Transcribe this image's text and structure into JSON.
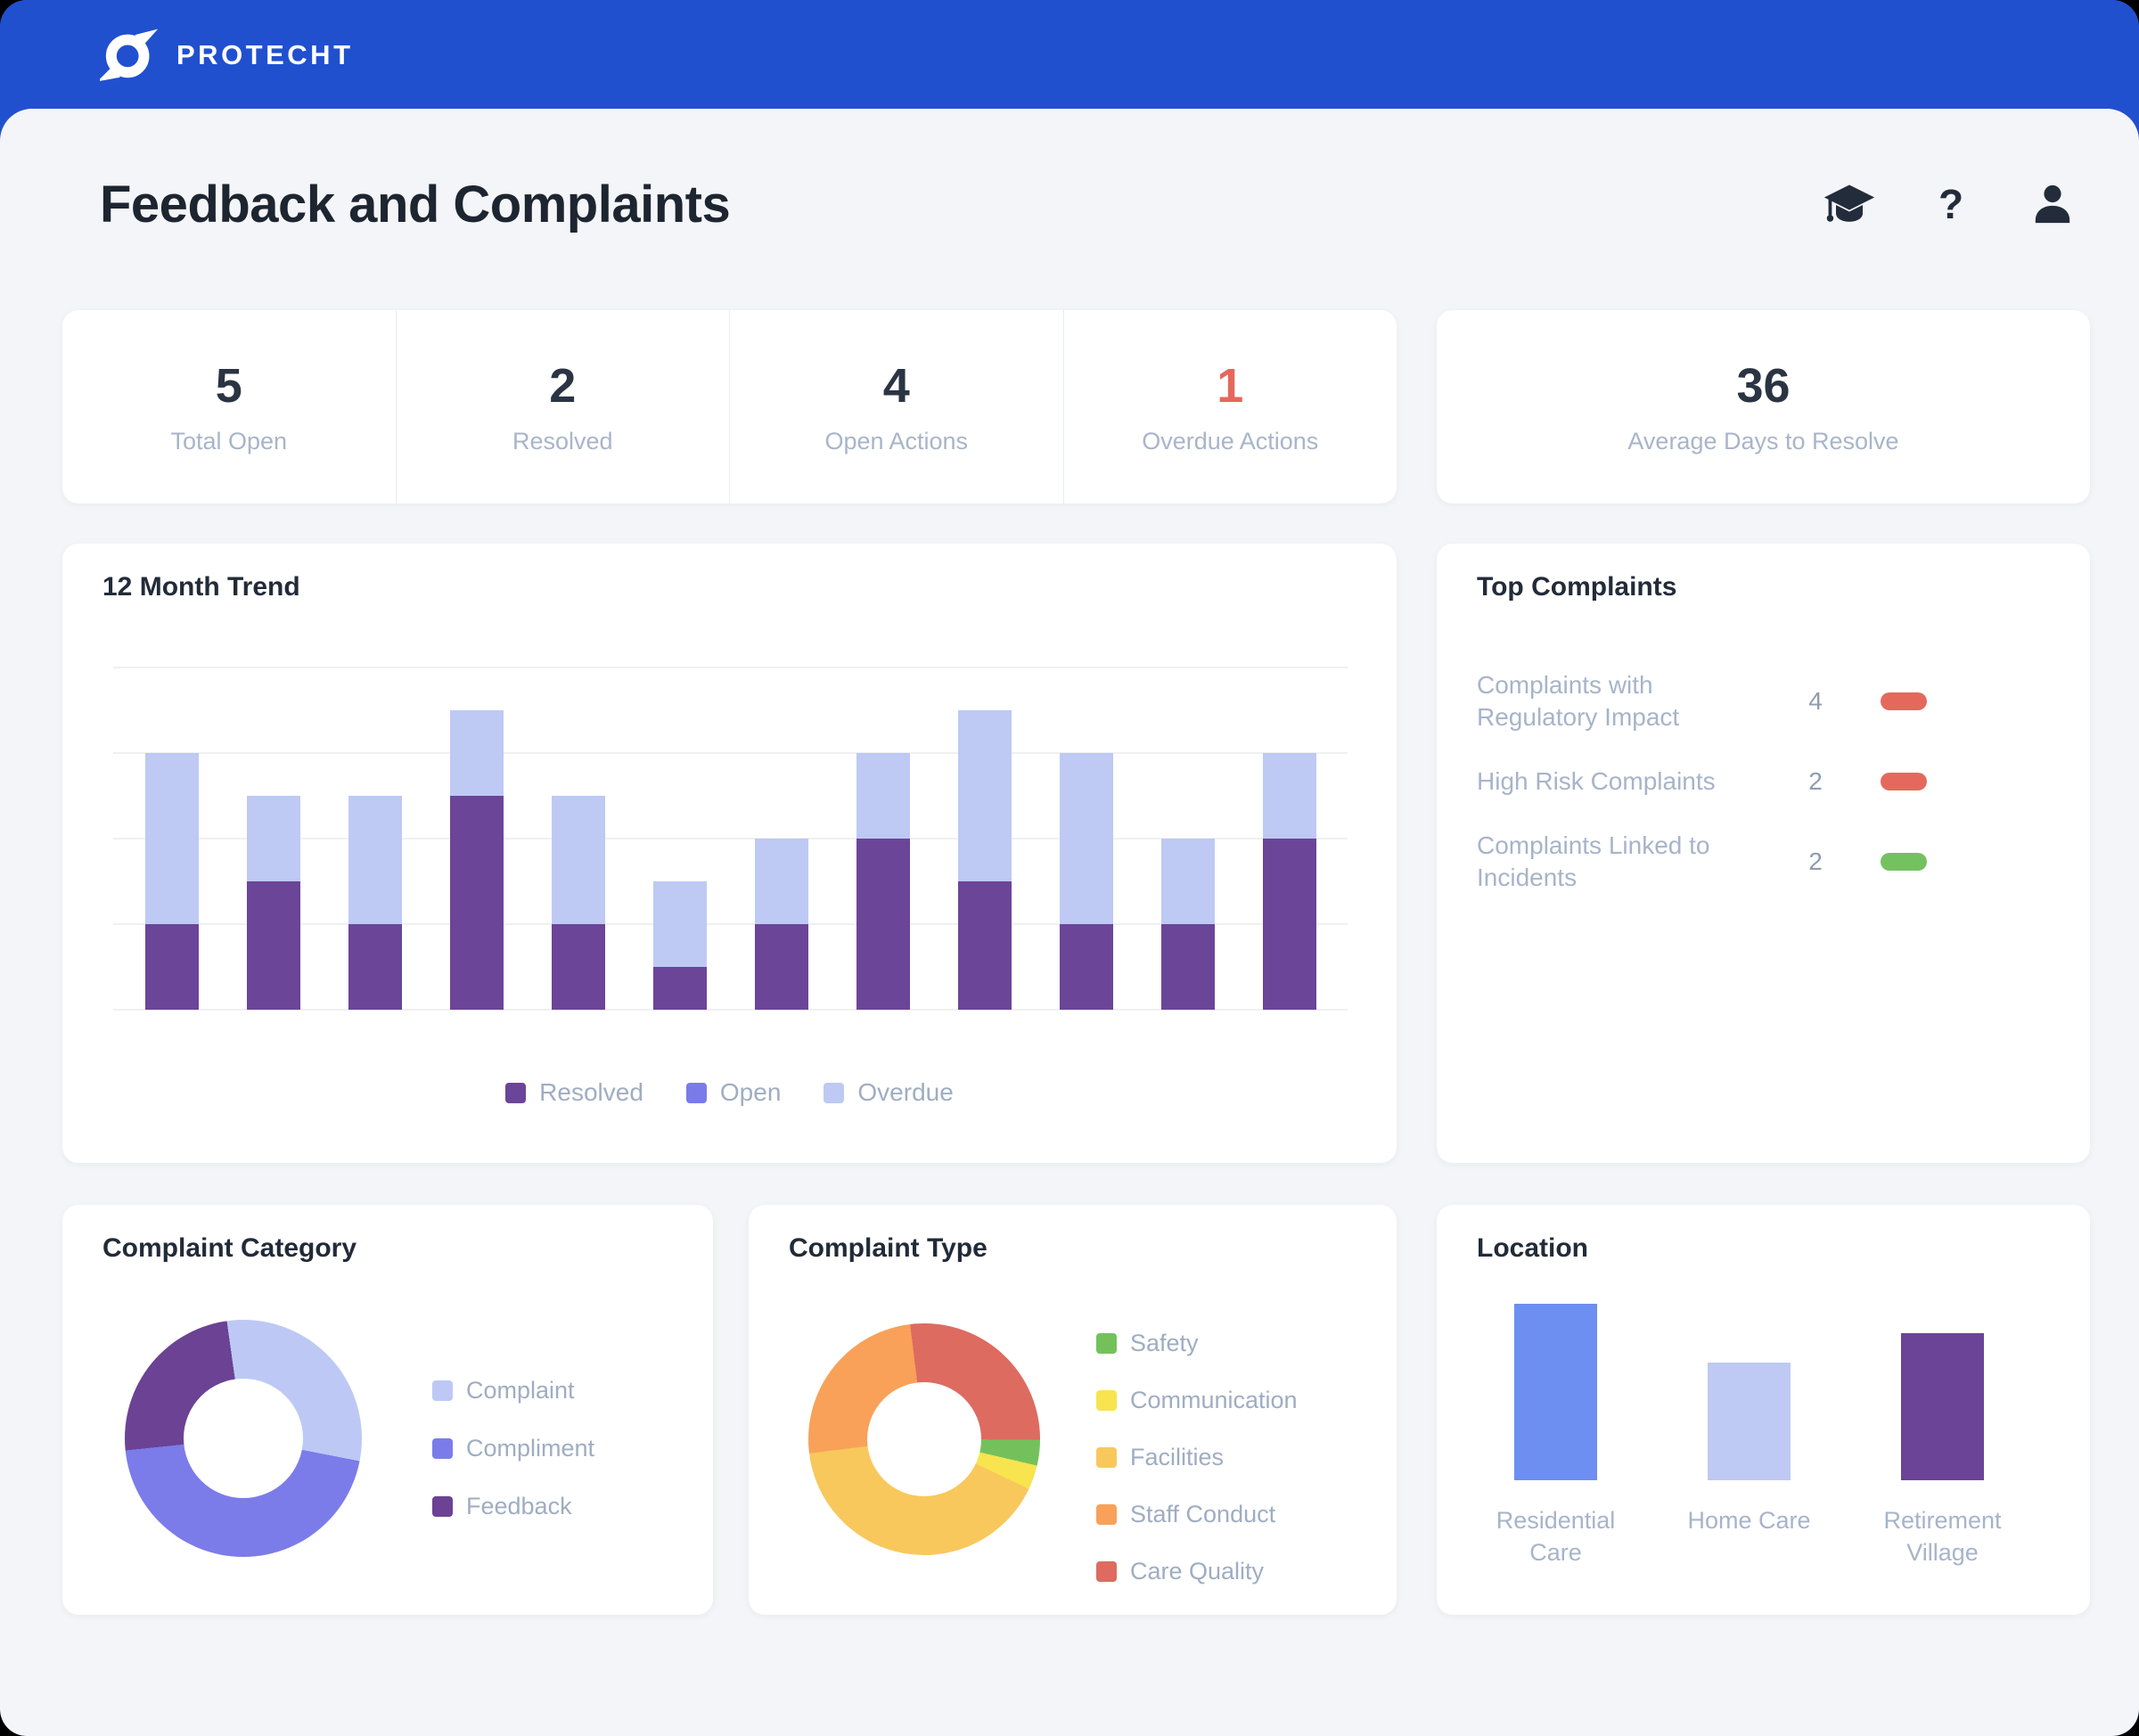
{
  "brand": {
    "name": "PROTECHT",
    "bar_color": "#2150cf"
  },
  "page": {
    "title": "Feedback and Complaints"
  },
  "header_icons": [
    {
      "name": "graduation-cap-icon"
    },
    {
      "name": "help-icon",
      "glyph": "?"
    },
    {
      "name": "user-icon"
    }
  ],
  "stats": {
    "left_items": [
      {
        "value": "5",
        "label": "Total Open",
        "alert": false
      },
      {
        "value": "2",
        "label": "Resolved",
        "alert": false
      },
      {
        "value": "4",
        "label": "Open Actions",
        "alert": false
      },
      {
        "value": "1",
        "label": "Overdue Actions",
        "alert": true
      }
    ],
    "right_items": [
      {
        "value": "36",
        "label": "Average Days to Resolve",
        "alert": false
      }
    ],
    "alert_color": "#e4695c"
  },
  "top_complaints": {
    "title": "Top Complaints",
    "rows": [
      {
        "label": "Complaints with Regulatory Impact",
        "value": "4",
        "pill_color": "#e4695c"
      },
      {
        "label": "High Risk Complaints",
        "value": "2",
        "pill_color": "#e4695c"
      },
      {
        "label": "Complaints Linked to Incidents",
        "value": "2",
        "pill_color": "#74c160"
      }
    ]
  },
  "chart_data": [
    {
      "id": "trend",
      "type": "bar",
      "stacked": true,
      "title": "12 Month Trend",
      "categories_shown": false,
      "months": 12,
      "series": [
        {
          "name": "Resolved",
          "color": "#6b4598",
          "values": [
            2,
            3,
            2,
            5,
            2,
            1,
            2,
            4,
            3,
            2,
            2,
            4
          ]
        },
        {
          "name": "Open",
          "color": "#7b7ae9",
          "values": [
            0,
            0,
            0,
            0,
            0,
            0,
            0,
            0,
            0,
            0,
            0,
            0
          ]
        },
        {
          "name": "Overdue",
          "color": "#bec9f4",
          "values": [
            4,
            2,
            3,
            2,
            3,
            2,
            2,
            2,
            4,
            4,
            2,
            2
          ]
        }
      ],
      "ylim": [
        0,
        8
      ],
      "grid_step": 2,
      "grid": true,
      "legend_position": "bottom"
    },
    {
      "id": "category",
      "type": "pie",
      "title": "Complaint Category",
      "start_angle_deg": -8,
      "slices": [
        {
          "label": "Complaint",
          "color": "#bdc9f4",
          "pct": 30.3
        },
        {
          "label": "Compliment",
          "color": "#7b7ce9",
          "pct": 45.3
        },
        {
          "label": "Feedback",
          "color": "#6b4294",
          "pct": 24.4
        }
      ],
      "donut_hole_ratio": 0.5,
      "legend_position": "right"
    },
    {
      "id": "type",
      "type": "pie",
      "title": "Complaint Type",
      "start_angle_deg": -7,
      "slices": [
        {
          "label": "Care Quality",
          "color": "#dd6b60",
          "pct": 27.0
        },
        {
          "label": "Safety",
          "color": "#74c15c",
          "pct": 3.6
        },
        {
          "label": "Communication",
          "color": "#f7e44e",
          "pct": 3.4
        },
        {
          "label": "Facilities",
          "color": "#f8c85c",
          "pct": 41.0
        },
        {
          "label": "Staff Conduct",
          "color": "#f9a158",
          "pct": 25.0
        }
      ],
      "legend_order": [
        "Safety",
        "Communication",
        "Facilities",
        "Staff Conduct",
        "Care Quality"
      ],
      "donut_hole_ratio": 0.49,
      "legend_position": "right"
    },
    {
      "id": "location",
      "type": "bar",
      "title": "Location",
      "categories": [
        "Residential Care",
        "Home Care",
        "Retirement Village"
      ],
      "values": [
        6,
        4,
        5
      ],
      "colors": [
        "#6d8ff2",
        "#bec9f4",
        "#6b4397"
      ],
      "axis_labels_shown": false,
      "grid": false
    }
  ]
}
